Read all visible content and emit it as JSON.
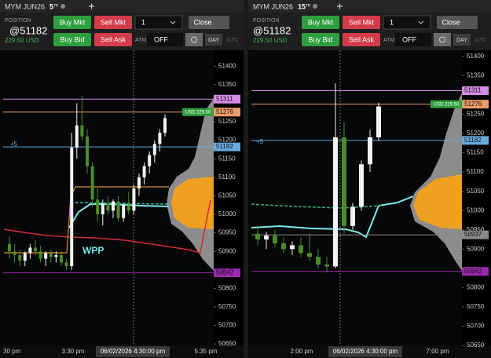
{
  "panels": [
    {
      "symbol": "MYM JUN26",
      "interval": "5",
      "interval_unit": "m",
      "position_label": "POSITION",
      "position_price": "@51182",
      "position_value": "229.50 USD",
      "buttons": [
        "Buy Mkt",
        "Sell Mkt",
        "Buy Bid",
        "Sell Ask"
      ],
      "quantity": "1",
      "close": "Close",
      "atm_label": "ATM",
      "atm_value": "OFF",
      "tif": [
        "DAY",
        "GTC"
      ],
      "ylim": [
        50646,
        51443
      ],
      "yticks": [
        51400,
        51350,
        51250,
        51200,
        51150,
        51100,
        51050,
        51000,
        50950,
        50900,
        50800,
        50750,
        50700,
        50650
      ],
      "levels": [
        {
          "value": 51311,
          "color": "#d68be6"
        },
        {
          "value": 51276,
          "color": "#ef9a6a"
        },
        {
          "value": 51182,
          "color": "#66a9de"
        },
        {
          "value": 50842,
          "color": "#9c27b0"
        }
      ],
      "pnl_tag": "USD 229.50",
      "offset_label": "+5",
      "study_label": "WPP",
      "xlabels": [
        "30 pm",
        "3:30 pm",
        "5:35 pm"
      ],
      "cursor_time": "06/02/2026 4:30:00 pm",
      "candles": [
        [
          50920,
          50940,
          50880,
          50900
        ],
        [
          50900,
          50920,
          50870,
          50890
        ],
        [
          50890,
          50905,
          50860,
          50875
        ],
        [
          50875,
          50900,
          50860,
          50895
        ],
        [
          50895,
          50920,
          50880,
          50910
        ],
        [
          50910,
          50930,
          50890,
          50900
        ],
        [
          50900,
          50915,
          50870,
          50880
        ],
        [
          50880,
          50900,
          50860,
          50895
        ],
        [
          50895,
          50905,
          50870,
          50885
        ],
        [
          50885,
          50900,
          50870,
          50890
        ],
        [
          50890,
          50900,
          50860,
          50870
        ],
        [
          50870,
          50880,
          50850,
          50860
        ],
        [
          50860,
          51220,
          50850,
          51180
        ],
        [
          51180,
          51300,
          51150,
          51240
        ],
        [
          51240,
          51320,
          51200,
          51210
        ],
        [
          51210,
          51230,
          51110,
          51130
        ],
        [
          51130,
          51140,
          51020,
          51040
        ],
        [
          51040,
          51070,
          50980,
          51000
        ],
        [
          51000,
          51040,
          50970,
          51030
        ],
        [
          51030,
          51050,
          51000,
          51010
        ],
        [
          51010,
          51040,
          50990,
          51035
        ],
        [
          51035,
          51050,
          50980,
          50990
        ],
        [
          50990,
          51030,
          50980,
          51025
        ],
        [
          51025,
          51060,
          51000,
          51010
        ],
        [
          51010,
          51080,
          51000,
          51070
        ],
        [
          51070,
          51110,
          51050,
          51100
        ],
        [
          51100,
          51140,
          51080,
          51130
        ],
        [
          51130,
          51170,
          51110,
          51160
        ],
        [
          51160,
          51200,
          51140,
          51190
        ],
        [
          51190,
          51230,
          51170,
          51220
        ],
        [
          51220,
          51270,
          51210,
          51260
        ]
      ]
    },
    {
      "symbol": "MYM JUN26",
      "interval": "15",
      "interval_unit": "m",
      "position_label": "POSITION",
      "position_price": "@51182",
      "position_value": "229.50 USD",
      "buttons": [
        "Buy Mkt",
        "Sell Mkt",
        "Buy Bid",
        "Sell Ask"
      ],
      "quantity": "1",
      "close": "Close",
      "atm_label": "ATM",
      "atm_value": "OFF",
      "tif": [
        "DAY",
        "GTC"
      ],
      "ylim": [
        50650,
        51416
      ],
      "yticks": [
        51400,
        51350,
        51250,
        51200,
        51150,
        51100,
        51050,
        51000,
        50950,
        50900,
        50800,
        50750,
        50700,
        50650
      ],
      "levels": [
        {
          "value": 51311,
          "color": "#d68be6"
        },
        {
          "value": 51276,
          "color": "#ef9a6a"
        },
        {
          "value": 51182,
          "color": "#66a9de"
        },
        {
          "value": 50937,
          "color": "#8a8a8a"
        },
        {
          "value": 50842,
          "color": "#9c27b0"
        }
      ],
      "pnl_tag": "USD 229.50",
      "offset_label": "+5",
      "xlabels": [
        "2:00 pm",
        "7:00 pm"
      ],
      "cursor_time": "06/02/2026 4:30:00 pm",
      "candles": [
        [
          50940,
          50960,
          50910,
          50925
        ],
        [
          50925,
          50945,
          50900,
          50935
        ],
        [
          50935,
          50950,
          50905,
          50915
        ],
        [
          50915,
          50930,
          50890,
          50900
        ],
        [
          50900,
          50920,
          50885,
          50910
        ],
        [
          50910,
          50930,
          50880,
          50890
        ],
        [
          50890,
          50940,
          50870,
          50880
        ],
        [
          50880,
          50900,
          50850,
          50860
        ],
        [
          50860,
          50880,
          50840,
          50855
        ],
        [
          50855,
          51330,
          50850,
          51190
        ],
        [
          51190,
          51230,
          50940,
          50960
        ],
        [
          50960,
          51020,
          50950,
          51010
        ],
        [
          51010,
          51130,
          51000,
          51120
        ],
        [
          51120,
          51210,
          51100,
          51190
        ],
        [
          51190,
          51280,
          51180,
          51270
        ]
      ]
    }
  ]
}
